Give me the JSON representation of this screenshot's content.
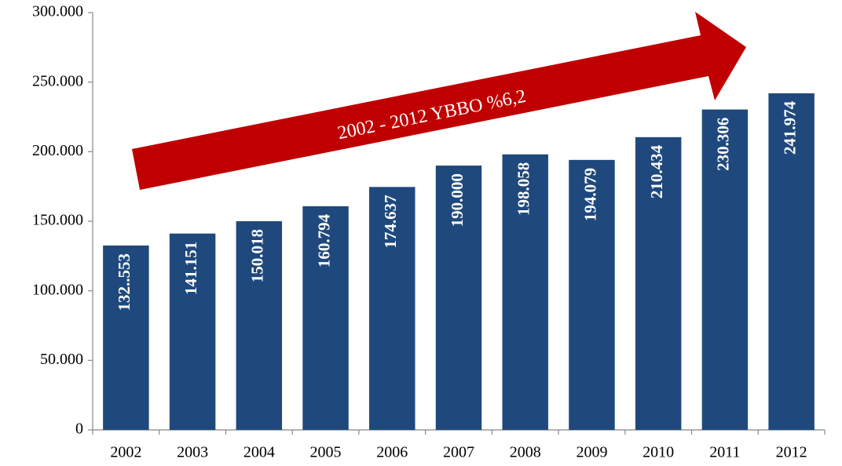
{
  "chart_data": {
    "type": "bar",
    "annotation": "2002 - 2012 YBBO %6,2",
    "categories": [
      "2002",
      "2003",
      "2004",
      "2005",
      "2006",
      "2007",
      "2008",
      "2009",
      "2010",
      "2011",
      "2012"
    ],
    "values": [
      132553,
      141151,
      150018,
      160794,
      174637,
      190000,
      198058,
      194079,
      210434,
      230306,
      241974
    ],
    "value_labels": [
      "132..553",
      "141.151",
      "150.018",
      "160.794",
      "174.637",
      "190.000",
      "198.058",
      "194.079",
      "210.434",
      "230.306",
      "241.974"
    ],
    "color": "#1f497d",
    "ylim": [
      0,
      300000
    ],
    "yticks": [
      0,
      {
        "value": 50000,
        "label": "50.000"
      },
      {
        "value": 100000,
        "label": "100.000"
      },
      {
        "value": 150000,
        "label": "150.000"
      },
      {
        "value": 200000,
        "label": "200.000"
      },
      {
        "value": 250000,
        "label": "250.000"
      },
      {
        "value": 300000,
        "label": "300.000"
      }
    ],
    "arrow_color": "#c00000"
  }
}
